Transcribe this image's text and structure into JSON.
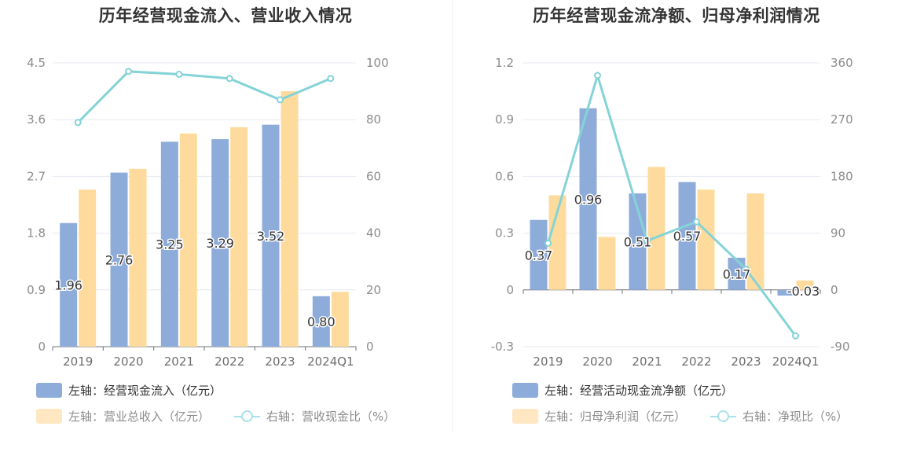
{
  "chart_data": [
    {
      "type": "bar",
      "title": "历年经营现金流入、营业收入情况",
      "categories": [
        "2019",
        "2020",
        "2021",
        "2022",
        "2023",
        "2024Q1"
      ],
      "left_axis": {
        "ticks": [
          "4.5",
          "3.6",
          "2.7",
          "1.8",
          "0.9",
          "0"
        ],
        "min": 0,
        "max": 4.5
      },
      "right_axis": {
        "ticks": [
          "100",
          "80",
          "60",
          "40",
          "20",
          "0"
        ],
        "min": 0,
        "max": 100
      },
      "series": [
        {
          "name": "左轴：经营现金流入（亿元）",
          "type": "bar",
          "axis": "left",
          "color": "#8eacda",
          "values": [
            1.96,
            2.76,
            3.25,
            3.29,
            3.52,
            0.8
          ],
          "labels": [
            "1.96",
            "2.76",
            "3.25",
            "3.29",
            "3.52",
            "0.80"
          ]
        },
        {
          "name": "左轴：营业总收入（亿元）",
          "type": "bar",
          "axis": "left",
          "color": "#fedb9c",
          "values": [
            2.49,
            2.82,
            3.38,
            3.48,
            4.05,
            0.87
          ]
        },
        {
          "name": "右轴：营收现金比（%）",
          "type": "line",
          "axis": "right",
          "color": "#84d3d7",
          "values": [
            79,
            97,
            96,
            94.5,
            87,
            94.5
          ]
        }
      ],
      "grid": true,
      "legend_position": "bottom-left"
    },
    {
      "type": "bar",
      "title": "历年经营现金流净额、归母净利润情况",
      "categories": [
        "2019",
        "2020",
        "2021",
        "2022",
        "2023",
        "2024Q1"
      ],
      "left_axis": {
        "ticks": [
          "1.2",
          "0.9",
          "0.6",
          "0.3",
          "0",
          "-0.3"
        ],
        "min": -0.3,
        "max": 1.2
      },
      "right_axis": {
        "ticks": [
          "360",
          "270",
          "180",
          "90",
          "0",
          "-90"
        ],
        "min": -90,
        "max": 360
      },
      "series": [
        {
          "name": "左轴：经营活动现金流净额（亿元）",
          "type": "bar",
          "axis": "left",
          "color": "#8eacda",
          "values": [
            0.37,
            0.96,
            0.51,
            0.57,
            0.17,
            -0.03
          ],
          "labels": [
            "0.37",
            "0.96",
            "0.51",
            "0.57",
            "0.17",
            "-0.03"
          ]
        },
        {
          "name": "左轴：归母净利润（亿元）",
          "type": "bar",
          "axis": "left",
          "color": "#fedb9c",
          "values": [
            0.5,
            0.28,
            0.65,
            0.53,
            0.51,
            0.05
          ]
        },
        {
          "name": "右轴：净现比（%）",
          "type": "line",
          "axis": "right",
          "color": "#84d3d7",
          "values": [
            74,
            340,
            78,
            108,
            33,
            -73
          ]
        }
      ],
      "grid": true,
      "legend_position": "bottom-left"
    }
  ]
}
